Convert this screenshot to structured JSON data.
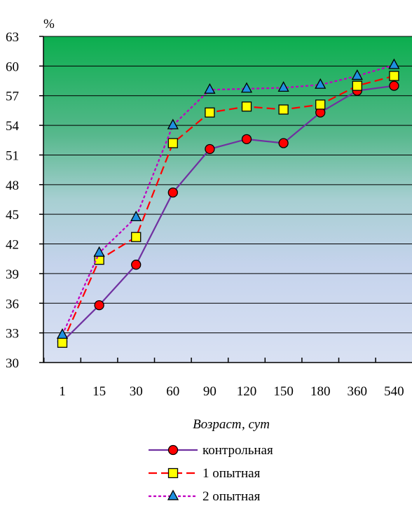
{
  "chart_data": {
    "type": "line",
    "ylabel": "%",
    "xlabel": "Возраст, сут",
    "categories": [
      "1",
      "15",
      "30",
      "60",
      "90",
      "120",
      "150",
      "180",
      "360",
      "540"
    ],
    "ylim": [
      30,
      63
    ],
    "yticks": [
      30,
      33,
      36,
      39,
      42,
      45,
      48,
      51,
      54,
      57,
      60,
      63
    ],
    "grid": true,
    "legend_position": "bottom",
    "series": [
      {
        "name": "контрольная",
        "color": "#7030A0",
        "marker": "circle",
        "marker_fill": "#FF0000",
        "line": "solid",
        "values": [
          32.1,
          35.8,
          39.9,
          47.2,
          51.6,
          52.6,
          52.2,
          55.3,
          57.5,
          58.0
        ]
      },
      {
        "name": "1 опытная",
        "color": "#FF0000",
        "marker": "square",
        "marker_fill": "#FFFF00",
        "line": "dashed",
        "values": [
          32.0,
          40.4,
          42.7,
          52.2,
          55.3,
          55.9,
          55.6,
          56.1,
          58.0,
          59.0
        ]
      },
      {
        "name": "2 опытная",
        "color": "#C000C0",
        "marker": "triangle",
        "marker_fill": "#1E90E0",
        "line": "dotted",
        "values": [
          32.8,
          41.1,
          44.7,
          54.0,
          57.6,
          57.7,
          57.8,
          58.1,
          59.0,
          60.1
        ]
      }
    ]
  }
}
